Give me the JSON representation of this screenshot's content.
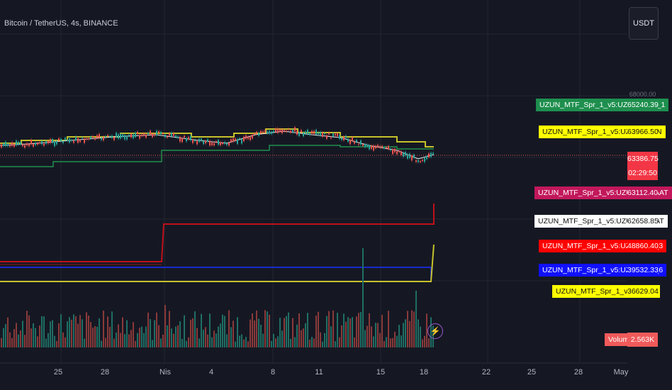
{
  "header": {
    "symbol": "Bitcoin / TetherUS, 4s, BINANCE",
    "currency": "USDT"
  },
  "scale_top_partial": "68000.00",
  "indicators": [
    {
      "name": "UZUN_MTF_Spr_1_v5:UZUN_HFT_1",
      "value": "65240.39",
      "bg": "#1e8f4e",
      "fg": "#ffffff"
    },
    {
      "name": "UZUN_MTF_Spr_1_v5:UZUN_GUN",
      "value": "63966.50",
      "bg": "#ffff00",
      "fg": "#111111"
    },
    {
      "name": "UZUN_MTF_Spr_1_v5:UZUN_12SAAT",
      "value": "63112.40",
      "bg": "#c2185b",
      "fg": "#ffffff"
    },
    {
      "name": "UZUN_MTF_Spr_1_v5:UZUN_4SAAT",
      "value": "62658.85",
      "bg": "#ffffff",
      "fg": "#111111"
    },
    {
      "name": "UZUN_MTF_Spr_1_v5:UZUN_AY_3",
      "value": "48860.40",
      "bg": "#ff0000",
      "fg": "#ffffff"
    },
    {
      "name": "UZUN_MTF_Spr_1_v5:UZUN_AY_6",
      "value": "39532.33",
      "bg": "#1010ff",
      "fg": "#ffffff"
    },
    {
      "name": "UZUN_MTF_Spr_1_v5:YILLIK",
      "value": "36629.04",
      "bg": "#ffff00",
      "fg": "#111111"
    }
  ],
  "last_price": {
    "value": "63386.75",
    "countdown": "02:29:50",
    "bg": "#f23645"
  },
  "volume": {
    "label": "Volume",
    "value": "2.563K",
    "bg": "#f05a5a"
  },
  "x_axis": [
    "25",
    "28",
    "Nis",
    "4",
    "8",
    "11",
    "15",
    "18",
    "22",
    "25",
    "28",
    "May"
  ],
  "colors": {
    "up": "#26a69a",
    "down": "#ef5350",
    "background": "#151823"
  }
}
